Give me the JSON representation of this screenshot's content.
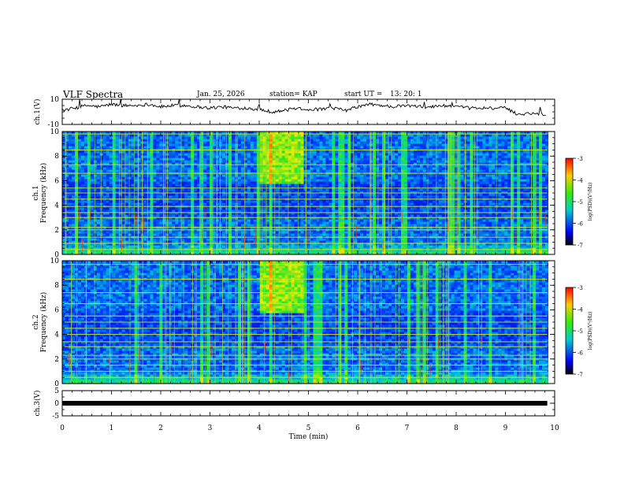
{
  "header": {
    "title": "VLF Spectra",
    "date": "Jan. 25, 2026",
    "station_label": "station= KAP",
    "start_label": "start UT =",
    "start_time": "13: 20: 1"
  },
  "chart_data": [
    {
      "id": "ch1-voltage",
      "type": "line",
      "ylabel": "ch.1(V)",
      "ylim": [
        -10,
        10
      ],
      "yticks": [
        "10",
        "-10"
      ],
      "x": [
        0,
        0.25,
        0.5,
        0.75,
        1.0,
        1.25,
        1.5,
        1.75,
        2.0,
        2.25,
        2.5,
        2.75,
        3.0,
        3.25,
        3.5,
        3.75,
        4.0,
        4.25,
        4.5,
        4.75,
        5.0,
        5.25,
        5.5,
        5.75,
        6.0,
        6.25,
        6.5,
        6.75,
        7.0,
        7.25,
        7.5,
        7.75,
        8.0,
        8.25,
        8.5,
        8.75,
        9.0,
        9.25,
        9.5,
        9.85
      ],
      "values": [
        1,
        3,
        5,
        4,
        6,
        5,
        5,
        6,
        4,
        5,
        5,
        4,
        3,
        4,
        3,
        3,
        2,
        0,
        1,
        3,
        2,
        2,
        3,
        1,
        4,
        6,
        5,
        4,
        5,
        4,
        4,
        5,
        4,
        3,
        3,
        3,
        3,
        -2,
        -1,
        -2
      ]
    },
    {
      "id": "ch1-spectrogram",
      "type": "heatmap",
      "ylabel_top": "ch.1",
      "ylabel": "Frequency (kHz)",
      "ylim": [
        0,
        10
      ],
      "yticks": [
        "0",
        "2",
        "4",
        "6",
        "8",
        "10"
      ],
      "xlim": [
        0,
        10
      ],
      "bright_region_min": [
        4.0,
        4.9
      ],
      "bright_band_khz": [
        5.8,
        10
      ],
      "emission_lines_khz": [
        0.4,
        0.9,
        1.4,
        2.0,
        2.2,
        3.0,
        3.4,
        3.9,
        4.5,
        5.0,
        5.4,
        6.6,
        7.3,
        8.5,
        9.8
      ]
    },
    {
      "id": "ch2-spectrogram",
      "type": "heatmap",
      "ylabel_top": "ch.2",
      "ylabel": "Frequency (kHz)",
      "ylim": [
        0,
        10
      ],
      "yticks": [
        "0",
        "2",
        "4",
        "6",
        "8",
        "10"
      ],
      "xlim": [
        0,
        10
      ],
      "bright_region_min": [
        4.0,
        4.9
      ],
      "bright_band_khz": [
        5.8,
        10
      ],
      "emission_lines_khz": [
        0.5,
        1.0,
        1.5,
        2.0,
        2.3,
        3.0,
        3.4,
        4.0,
        4.5,
        5.0,
        5.5,
        6.5,
        7.4,
        8.5,
        9.7
      ]
    },
    {
      "id": "ch3-voltage",
      "type": "line",
      "ylabel": "ch.3(V)",
      "ylim": [
        -5,
        5
      ],
      "yticks": [
        "5",
        "0",
        "-5"
      ],
      "constant_value": 0,
      "xlim": [
        0,
        9.85
      ]
    }
  ],
  "colorbar": {
    "label": "log(PSD)(V²/Hz)",
    "range": [
      -7,
      -3
    ],
    "ticks": [
      "-3",
      "-4",
      "-5",
      "-6",
      "-7"
    ],
    "colors": [
      "#ff0000",
      "#ffcc00",
      "#33ee00",
      "#00cccc",
      "#0000ff",
      "#000000"
    ]
  },
  "xaxis": {
    "label": "Time (min)",
    "ticks": [
      "0",
      "1",
      "2",
      "3",
      "4",
      "5",
      "6",
      "7",
      "8",
      "9",
      "10"
    ],
    "range": [
      0,
      10
    ]
  }
}
